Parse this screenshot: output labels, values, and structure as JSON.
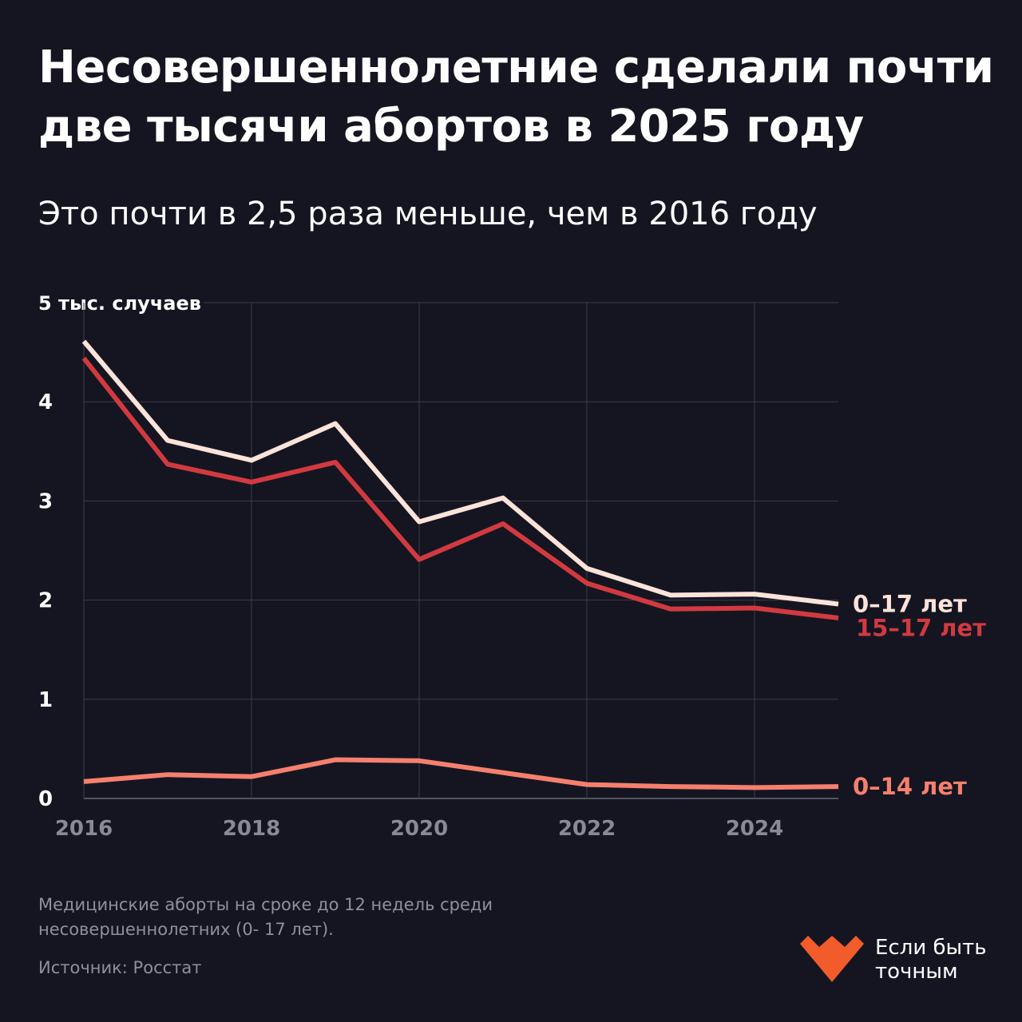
{
  "header": {
    "title": "Несовершеннолетние сделали почти две тысячи абортов в 2025 году",
    "subtitle": "Это почти в 2,5 раза меньше, чем в 2016 году"
  },
  "chart_data": {
    "type": "line",
    "x": [
      2016,
      2017,
      2018,
      2019,
      2020,
      2021,
      2022,
      2023,
      2024,
      2025
    ],
    "x_ticks": [
      "2016",
      "2018",
      "2020",
      "2022",
      "2024"
    ],
    "y_ticks": [
      "0",
      "1",
      "2",
      "3",
      "4",
      "5 тыс. случаев"
    ],
    "ylim": [
      0,
      5
    ],
    "grid": true,
    "series": [
      {
        "name": "0–17 лет",
        "color": "#fce3d9",
        "values": [
          4.61,
          3.61,
          3.41,
          3.78,
          2.79,
          3.03,
          2.32,
          2.05,
          2.06,
          1.96
        ]
      },
      {
        "name": "15–17 лет",
        "color": "#d13a3f",
        "values": [
          4.44,
          3.37,
          3.19,
          3.39,
          2.41,
          2.77,
          2.17,
          1.91,
          1.92,
          1.82
        ]
      },
      {
        "name": "0–14 лет",
        "color": "#f5806d",
        "values": [
          0.17,
          0.24,
          0.22,
          0.39,
          0.38,
          0.26,
          0.14,
          0.12,
          0.11,
          0.12
        ]
      }
    ]
  },
  "footer": {
    "note": "Медицинские аборты на сроке до 12 недель среди несовершеннолетних (0- 17 лет).",
    "source": "Источник: Росстат",
    "brand": "Если быть точным",
    "brand_color": "#f25c2a"
  }
}
